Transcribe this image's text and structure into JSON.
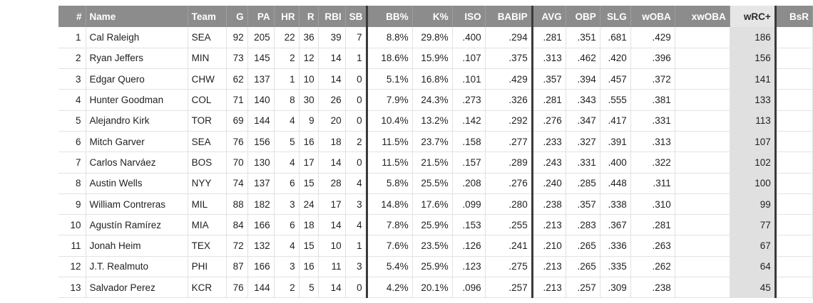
{
  "table": {
    "columns": [
      "#",
      "Name",
      "Team",
      "G",
      "PA",
      "HR",
      "R",
      "RBI",
      "SB",
      "BB%",
      "K%",
      "ISO",
      "BABIP",
      "AVG",
      "OBP",
      "SLG",
      "wOBA",
      "xwOBA",
      "wRC+",
      "BsR"
    ],
    "sorted_column": "wRC+",
    "rows": [
      {
        "rank": "1",
        "name": "Cal Raleigh",
        "team": "SEA",
        "g": "92",
        "pa": "205",
        "hr": "22",
        "r": "36",
        "rbi": "39",
        "sb": "7",
        "bb": "8.8%",
        "k": "29.8%",
        "iso": ".400",
        "babip": ".294",
        "avg": ".281",
        "obp": ".351",
        "slg": ".681",
        "woba": ".429",
        "xwoba": "",
        "wrc": "186",
        "bsr": ""
      },
      {
        "rank": "2",
        "name": "Ryan Jeffers",
        "team": "MIN",
        "g": "73",
        "pa": "145",
        "hr": "2",
        "r": "12",
        "rbi": "14",
        "sb": "1",
        "bb": "18.6%",
        "k": "15.9%",
        "iso": ".107",
        "babip": ".375",
        "avg": ".313",
        "obp": ".462",
        "slg": ".420",
        "woba": ".396",
        "xwoba": "",
        "wrc": "156",
        "bsr": ""
      },
      {
        "rank": "3",
        "name": "Edgar Quero",
        "team": "CHW",
        "g": "62",
        "pa": "137",
        "hr": "1",
        "r": "10",
        "rbi": "14",
        "sb": "0",
        "bb": "5.1%",
        "k": "16.8%",
        "iso": ".101",
        "babip": ".429",
        "avg": ".357",
        "obp": ".394",
        "slg": ".457",
        "woba": ".372",
        "xwoba": "",
        "wrc": "141",
        "bsr": ""
      },
      {
        "rank": "4",
        "name": "Hunter Goodman",
        "team": "COL",
        "g": "71",
        "pa": "140",
        "hr": "8",
        "r": "30",
        "rbi": "26",
        "sb": "0",
        "bb": "7.9%",
        "k": "24.3%",
        "iso": ".273",
        "babip": ".326",
        "avg": ".281",
        "obp": ".343",
        "slg": ".555",
        "woba": ".381",
        "xwoba": "",
        "wrc": "133",
        "bsr": ""
      },
      {
        "rank": "5",
        "name": "Alejandro Kirk",
        "team": "TOR",
        "g": "69",
        "pa": "144",
        "hr": "4",
        "r": "9",
        "rbi": "20",
        "sb": "0",
        "bb": "10.4%",
        "k": "13.2%",
        "iso": ".142",
        "babip": ".292",
        "avg": ".276",
        "obp": ".347",
        "slg": ".417",
        "woba": ".331",
        "xwoba": "",
        "wrc": "113",
        "bsr": ""
      },
      {
        "rank": "6",
        "name": "Mitch Garver",
        "team": "SEA",
        "g": "76",
        "pa": "156",
        "hr": "5",
        "r": "16",
        "rbi": "18",
        "sb": "2",
        "bb": "11.5%",
        "k": "23.7%",
        "iso": ".158",
        "babip": ".277",
        "avg": ".233",
        "obp": ".327",
        "slg": ".391",
        "woba": ".313",
        "xwoba": "",
        "wrc": "107",
        "bsr": ""
      },
      {
        "rank": "7",
        "name": "Carlos Narváez",
        "team": "BOS",
        "g": "70",
        "pa": "130",
        "hr": "4",
        "r": "17",
        "rbi": "14",
        "sb": "0",
        "bb": "11.5%",
        "k": "21.5%",
        "iso": ".157",
        "babip": ".289",
        "avg": ".243",
        "obp": ".331",
        "slg": ".400",
        "woba": ".322",
        "xwoba": "",
        "wrc": "102",
        "bsr": ""
      },
      {
        "rank": "8",
        "name": "Austin Wells",
        "team": "NYY",
        "g": "74",
        "pa": "137",
        "hr": "6",
        "r": "15",
        "rbi": "28",
        "sb": "4",
        "bb": "5.8%",
        "k": "25.5%",
        "iso": ".208",
        "babip": ".276",
        "avg": ".240",
        "obp": ".285",
        "slg": ".448",
        "woba": ".311",
        "xwoba": "",
        "wrc": "100",
        "bsr": ""
      },
      {
        "rank": "9",
        "name": "William Contreras",
        "team": "MIL",
        "g": "88",
        "pa": "182",
        "hr": "3",
        "r": "24",
        "rbi": "17",
        "sb": "3",
        "bb": "14.8%",
        "k": "17.6%",
        "iso": ".099",
        "babip": ".280",
        "avg": ".238",
        "obp": ".357",
        "slg": ".338",
        "woba": ".310",
        "xwoba": "",
        "wrc": "99",
        "bsr": ""
      },
      {
        "rank": "10",
        "name": "Agustín Ramírez",
        "team": "MIA",
        "g": "84",
        "pa": "166",
        "hr": "6",
        "r": "18",
        "rbi": "14",
        "sb": "4",
        "bb": "7.8%",
        "k": "25.9%",
        "iso": ".153",
        "babip": ".255",
        "avg": ".213",
        "obp": ".283",
        "slg": ".367",
        "woba": ".281",
        "xwoba": "",
        "wrc": "77",
        "bsr": ""
      },
      {
        "rank": "11",
        "name": "Jonah Heim",
        "team": "TEX",
        "g": "72",
        "pa": "132",
        "hr": "4",
        "r": "15",
        "rbi": "10",
        "sb": "1",
        "bb": "7.6%",
        "k": "23.5%",
        "iso": ".126",
        "babip": ".241",
        "avg": ".210",
        "obp": ".265",
        "slg": ".336",
        "woba": ".263",
        "xwoba": "",
        "wrc": "67",
        "bsr": ""
      },
      {
        "rank": "12",
        "name": "J.T. Realmuto",
        "team": "PHI",
        "g": "87",
        "pa": "166",
        "hr": "3",
        "r": "16",
        "rbi": "11",
        "sb": "3",
        "bb": "5.4%",
        "k": "25.9%",
        "iso": ".123",
        "babip": ".275",
        "avg": ".213",
        "obp": ".265",
        "slg": ".335",
        "woba": ".262",
        "xwoba": "",
        "wrc": "64",
        "bsr": ""
      },
      {
        "rank": "13",
        "name": "Salvador Perez",
        "team": "KCR",
        "g": "76",
        "pa": "144",
        "hr": "2",
        "r": "5",
        "rbi": "14",
        "sb": "0",
        "bb": "4.2%",
        "k": "20.1%",
        "iso": ".096",
        "babip": ".257",
        "avg": ".213",
        "obp": ".257",
        "slg": ".309",
        "woba": ".238",
        "xwoba": "",
        "wrc": "45",
        "bsr": ""
      }
    ]
  },
  "colors": {
    "header_bg": "#8c8c8c",
    "header_text": "#ffffff",
    "sorted_column_bg": "#e0e0e0",
    "section_divider": "#3a3a3a"
  }
}
